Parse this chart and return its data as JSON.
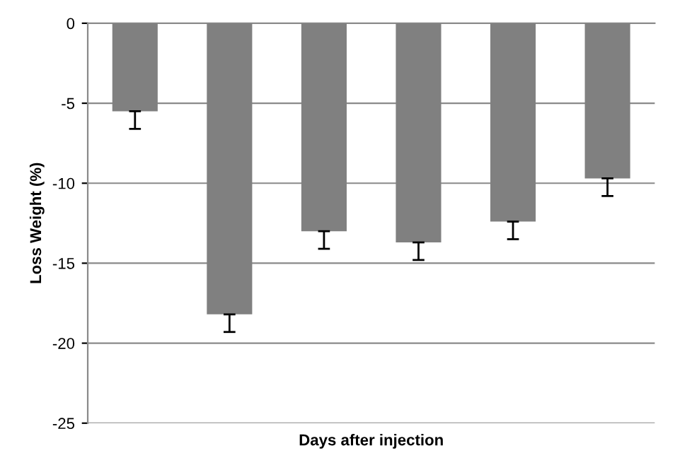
{
  "chart_data": {
    "type": "bar",
    "xlabel": "Days after injection",
    "ylabel": "Loss Weight (%)",
    "categories": [
      null,
      null,
      null,
      null,
      null,
      null
    ],
    "values": [
      -5.5,
      -18.2,
      -13.0,
      -13.7,
      -12.4,
      -9.7
    ],
    "errors": [
      [
        -6.6,
        -5.5
      ],
      [
        -19.3,
        -18.2
      ],
      [
        -14.1,
        -13.0
      ],
      [
        -14.8,
        -13.7
      ],
      [
        -13.5,
        -12.4
      ],
      [
        -10.8,
        -9.7
      ]
    ],
    "color": "#808080",
    "ylim": [
      -25,
      0
    ],
    "yticks": [
      -25,
      -20,
      -15,
      -10,
      -5,
      0
    ],
    "grid": "y"
  }
}
